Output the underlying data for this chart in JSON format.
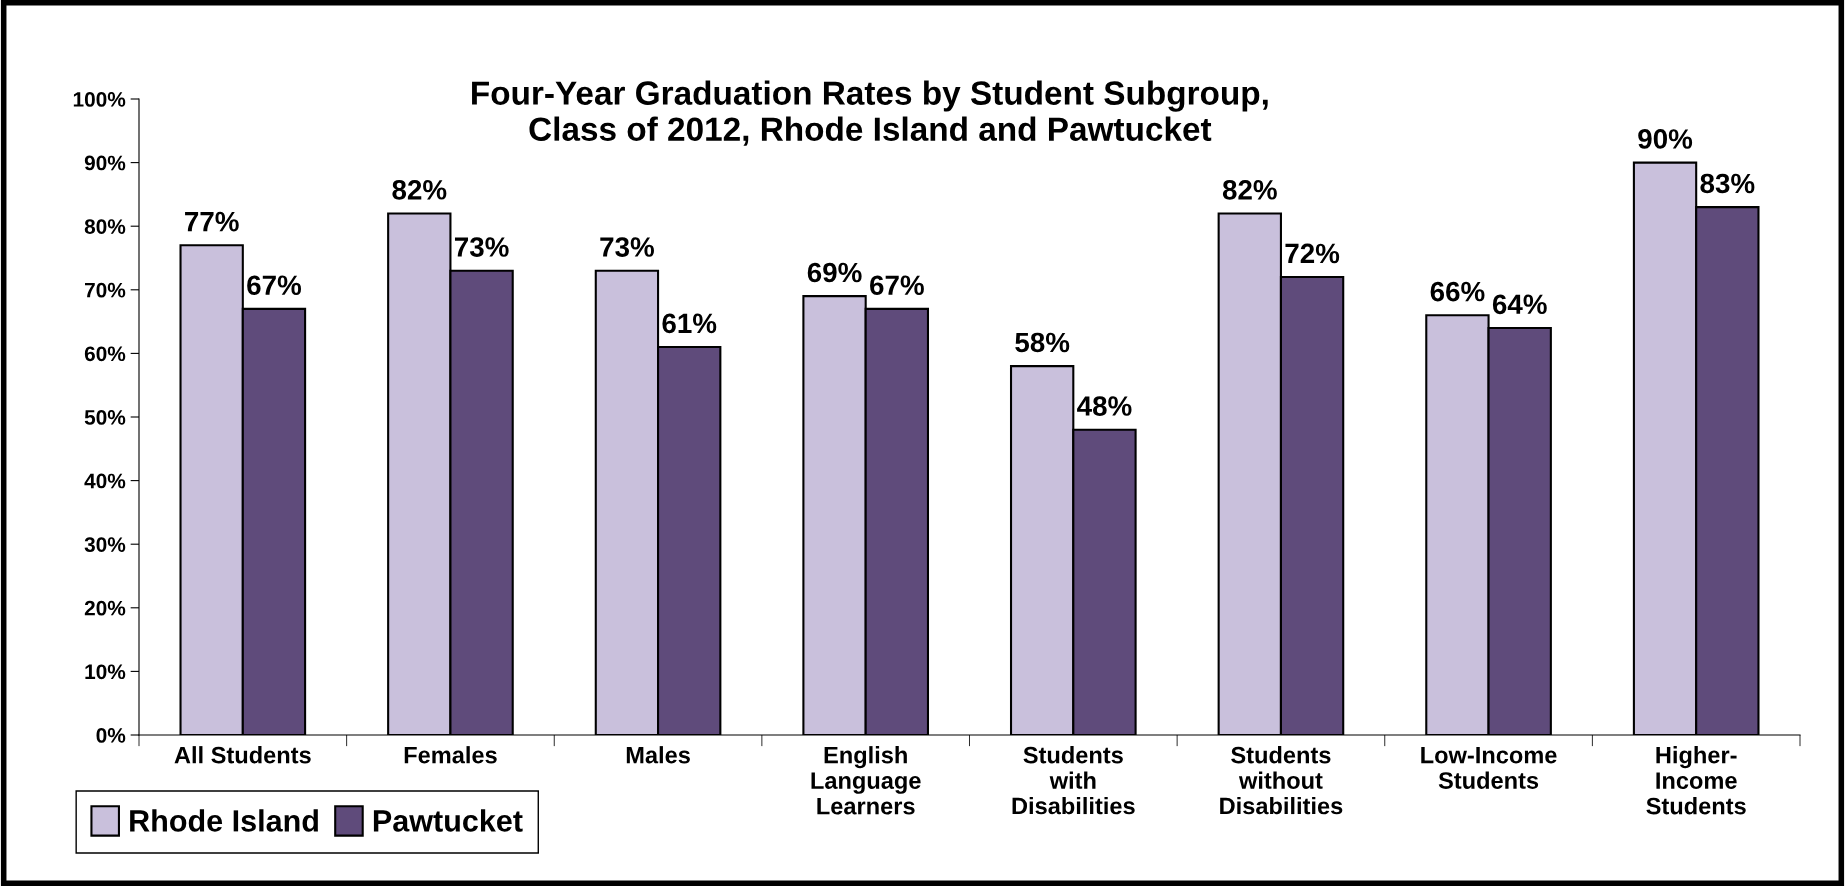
{
  "chart_data": {
    "type": "bar",
    "title": "Four-Year Graduation Rates by Student Subgroup,\nClass of 2012, Rhode Island and Pawtucket",
    "categories": [
      "All Students",
      "Females",
      "Males",
      "English\nLanguage\nLearners",
      "Students\nwith\nDisabilities",
      "Students\nwithout\nDisabilities",
      "Low-Income\nStudents",
      "Higher-\nIncome\nStudents"
    ],
    "series": [
      {
        "name": "Rhode Island",
        "color": "#c9c0dc",
        "values": [
          77,
          82,
          73,
          69,
          58,
          82,
          66,
          90
        ],
        "value_labels": [
          "77%",
          "82%",
          "73%",
          "69%",
          "58%",
          "82%",
          "66%",
          "90%"
        ]
      },
      {
        "name": "Pawtucket",
        "color": "#5f4b7b",
        "values": [
          67,
          73,
          61,
          67,
          48,
          72,
          64,
          83
        ],
        "value_labels": [
          "67%",
          "73%",
          "61%",
          "67%",
          "48%",
          "72%",
          "64%",
          "83%"
        ]
      }
    ],
    "ylim": [
      0,
      100
    ],
    "yticks": [
      {
        "value": 0,
        "label": "0%"
      },
      {
        "value": 10,
        "label": "10%"
      },
      {
        "value": 20,
        "label": "20%"
      },
      {
        "value": 30,
        "label": "30%"
      },
      {
        "value": 40,
        "label": "40%"
      },
      {
        "value": 50,
        "label": "50%"
      },
      {
        "value": 60,
        "label": "60%"
      },
      {
        "value": 70,
        "label": "70%"
      },
      {
        "value": 80,
        "label": "80%"
      },
      {
        "value": 90,
        "label": "90%"
      },
      {
        "value": 100,
        "label": "100%"
      }
    ],
    "grid": false,
    "legend": "bottom left"
  }
}
